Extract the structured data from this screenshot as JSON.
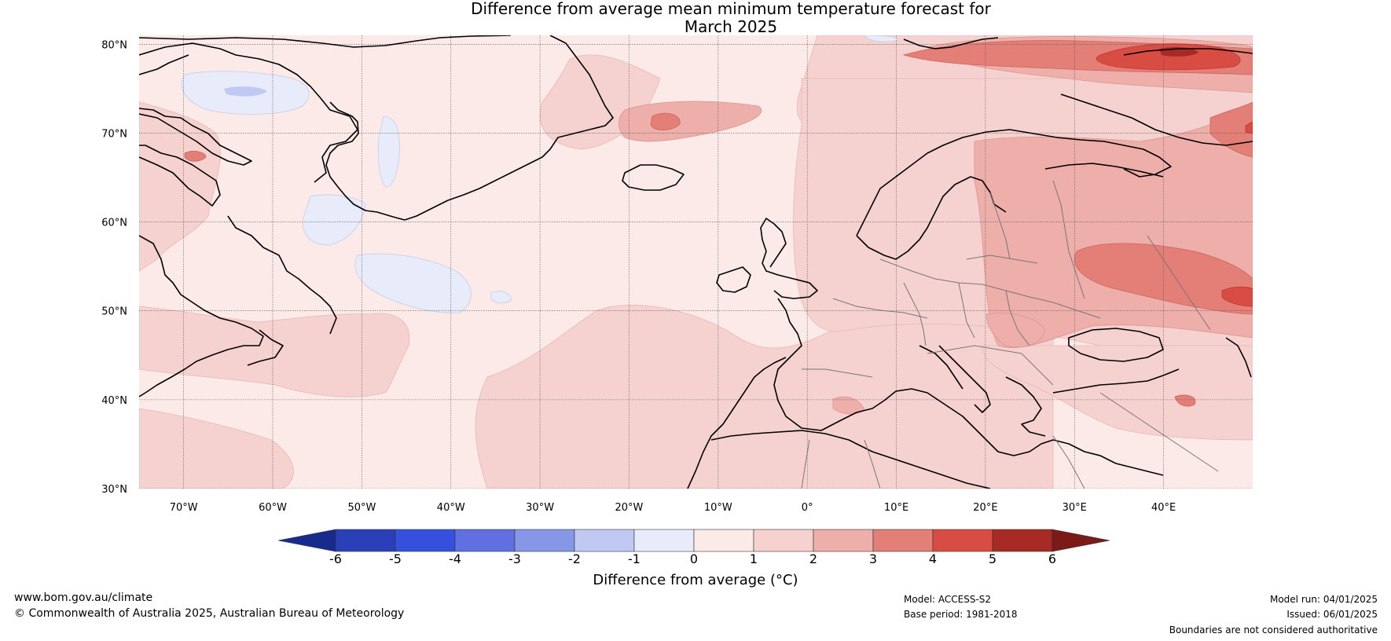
{
  "title": {
    "line1": "Difference from average mean minimum temperature forecast for",
    "line2": "March 2025"
  },
  "map": {
    "lat_labels": [
      "80°N",
      "70°N",
      "60°N",
      "50°N",
      "40°N",
      "30°N"
    ],
    "lon_labels": [
      "70°W",
      "60°W",
      "50°W",
      "40°W",
      "30°W",
      "20°W",
      "10°W",
      "0°",
      "10°E",
      "20°E",
      "30°E",
      "40°E"
    ],
    "colors": {
      "frame": "#000000",
      "grid": "#555555",
      "coast": "#000000",
      "border": "#777777"
    }
  },
  "colorbar": {
    "ticks": [
      "-6",
      "-5",
      "-4",
      "-3",
      "-2",
      "-1",
      "0",
      "1",
      "2",
      "3",
      "4",
      "5",
      "6"
    ],
    "colors": [
      "#182a8c",
      "#2a3fb8",
      "#3550dd",
      "#6070e2",
      "#8797e8",
      "#c1c8f2",
      "#e8ebfa",
      "#fbeae8",
      "#f5d2d0",
      "#eeaeaa",
      "#e47f78",
      "#d84c43",
      "#a82a24",
      "#7b1a17"
    ],
    "label": "Difference from average (°C)"
  },
  "footer": {
    "website": "www.bom.gov.au/climate",
    "copyright": "© Commonwealth of Australia 2025, Australian Bureau of Meteorology",
    "model": "Model: ACCESS-S2",
    "base_period": "Base period: 1981-2018",
    "model_run": "Model run: 04/01/2025",
    "issued": "Issued: 06/01/2025",
    "disclaimer": "Boundaries are not considered authoritative"
  }
}
